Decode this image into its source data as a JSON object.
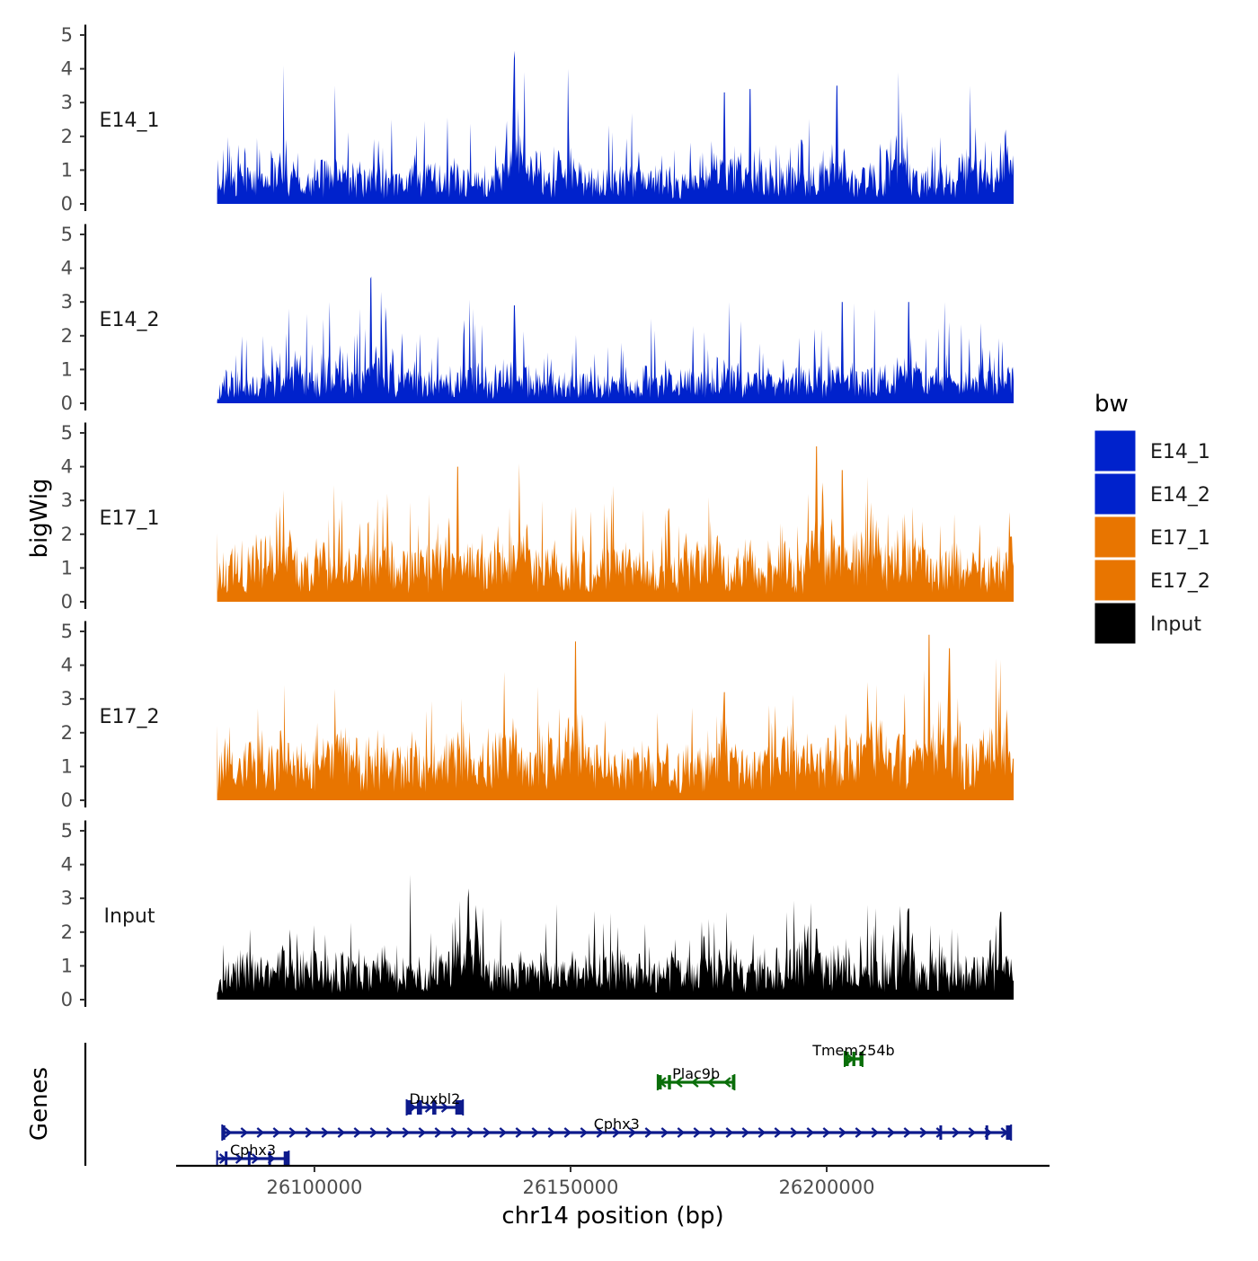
{
  "chart_data": {
    "type": "area",
    "title": "",
    "ylabel": "bigWig",
    "genes_ylabel": "Genes",
    "xlabel": "chr14 position (bp)",
    "chromosome": "chr14",
    "xlim": [
      26073000,
      26243500
    ],
    "data_range": [
      26081000,
      26236500
    ],
    "x_ticks": [
      26100000,
      26150000,
      26200000
    ],
    "x_tick_labels": [
      "26100000",
      "26150000",
      "26200000"
    ],
    "ylim": [
      0,
      5
    ],
    "y_ticks": [
      0,
      1,
      2,
      3,
      4,
      5
    ],
    "y_tick_labels": [
      "0",
      "1",
      "2",
      "3",
      "4",
      "5"
    ],
    "tracks": [
      {
        "name": "E14_1",
        "color": "#0022cc",
        "seed": 11,
        "base": 0.55,
        "peaks": [
          [
            26094000,
            4.1
          ],
          [
            26139000,
            4.0
          ],
          [
            26141000,
            3.9
          ],
          [
            26149500,
            4.0
          ],
          [
            26104000,
            3.5
          ],
          [
            26214000,
            3.9
          ],
          [
            26202000,
            3.5
          ],
          [
            26228000,
            3.5
          ],
          [
            26180000,
            3.3
          ],
          [
            26185000,
            3.4
          ]
        ]
      },
      {
        "name": "E14_2",
        "color": "#0022cc",
        "seed": 23,
        "base": 0.5,
        "peaks": [
          [
            26111000,
            3.2
          ],
          [
            26113000,
            3.3
          ],
          [
            26103000,
            3.0
          ],
          [
            26139000,
            2.9
          ],
          [
            26181000,
            3.0
          ],
          [
            26203000,
            3.0
          ],
          [
            26216000,
            3.0
          ],
          [
            26223000,
            3.0
          ],
          [
            26095000,
            2.8
          ],
          [
            26131000,
            2.8
          ]
        ]
      },
      {
        "name": "E17_1",
        "color": "#e87500",
        "seed": 37,
        "base": 0.85,
        "peaks": [
          [
            26198000,
            4.6
          ],
          [
            26140000,
            4.1
          ],
          [
            26128000,
            4.0
          ],
          [
            26203000,
            3.9
          ],
          [
            26094000,
            3.3
          ],
          [
            26208000,
            3.7
          ],
          [
            26158000,
            3.2
          ],
          [
            26177000,
            3.1
          ]
        ]
      },
      {
        "name": "E17_2",
        "color": "#e87500",
        "seed": 53,
        "base": 0.9,
        "peaks": [
          [
            26220000,
            4.9
          ],
          [
            26151000,
            4.7
          ],
          [
            26137000,
            3.8
          ],
          [
            26224000,
            4.5
          ],
          [
            26233000,
            4.2
          ],
          [
            26208000,
            3.5
          ],
          [
            26104000,
            3.3
          ],
          [
            26180000,
            3.2
          ]
        ]
      },
      {
        "name": "Input",
        "color": "#000000",
        "seed": 71,
        "base": 0.7,
        "peaks": [
          [
            26130000,
            3.0
          ],
          [
            26131500,
            2.8
          ],
          [
            26234000,
            2.6
          ],
          [
            26127000,
            2.3
          ],
          [
            26216000,
            2.7
          ],
          [
            26198000,
            2.1
          ]
        ]
      }
    ],
    "legend": {
      "title": "bw",
      "position": "right",
      "entries": [
        {
          "label": "E14_1",
          "color": "#0022cc"
        },
        {
          "label": "E14_2",
          "color": "#0022cc"
        },
        {
          "label": "E17_1",
          "color": "#e87500"
        },
        {
          "label": "E17_2",
          "color": "#e87500"
        },
        {
          "label": "Input",
          "color": "#000000"
        }
      ]
    },
    "genes": [
      {
        "name": "Cphx3",
        "start": 26081000,
        "end": 26095000,
        "strand": "+",
        "row": 1,
        "color": "#0d1a8c",
        "exons": [
          [
            26082500,
            26083000
          ],
          [
            26087000,
            26087500
          ],
          [
            26091000,
            26091500
          ],
          [
            26094000,
            26095000
          ]
        ]
      },
      {
        "name": "Cphx3",
        "start": 26082000,
        "end": 26236000,
        "strand": "+",
        "row": 2,
        "color": "#0d1a8c",
        "exons": [
          [
            26082000,
            26082600
          ],
          [
            26222000,
            26222500
          ],
          [
            26231000,
            26231500
          ],
          [
            26235000,
            26236000
          ]
        ]
      },
      {
        "name": "Duxbl2",
        "start": 26118000,
        "end": 26129000,
        "strand": "+",
        "row": 3,
        "color": "#0d1a8c",
        "exons": [
          [
            26118000,
            26119000
          ],
          [
            26120000,
            26121000
          ],
          [
            26123000,
            26123800
          ],
          [
            26127500,
            26129000
          ]
        ]
      },
      {
        "name": "Plac9b",
        "start": 26167000,
        "end": 26182000,
        "strand": "-",
        "row": 4,
        "color": "#0a6e0a",
        "exons": [
          [
            26167000,
            26167800
          ],
          [
            26169000,
            26169600
          ],
          [
            26181500,
            26182000
          ]
        ]
      },
      {
        "name": "Tmem254b",
        "start": 26203500,
        "end": 26207000,
        "strand": "+",
        "row": 5,
        "color": "#0a6e0a",
        "exons": [
          [
            26203500,
            26204300
          ],
          [
            26205000,
            26205600
          ],
          [
            26206400,
            26207000
          ]
        ]
      }
    ]
  }
}
